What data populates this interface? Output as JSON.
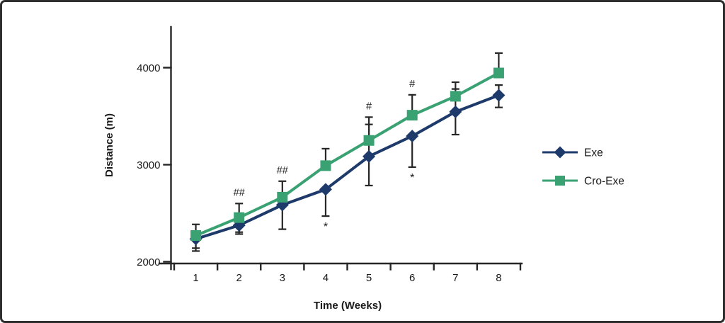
{
  "chart_data": {
    "type": "line",
    "title": "",
    "xlabel": "Time (Weeks)",
    "ylabel": "Distance (m)",
    "x_categories": [
      "1",
      "2",
      "3",
      "4",
      "5",
      "6",
      "7",
      "8"
    ],
    "yticks": [
      2000,
      3000,
      4000
    ],
    "ylim": [
      2000,
      4430
    ],
    "grid": false,
    "legend_position": "right-middle",
    "axis_color": "#262626",
    "text_color": "#1a1a1a",
    "series": [
      {
        "name": "Exe",
        "color": "#1e3a6b",
        "marker": "diamond",
        "values": [
          2235,
          2375,
          2585,
          2745,
          3085,
          3295,
          3545,
          3715
        ],
        "err_up": [
          0,
          0,
          0,
          0,
          330,
          0,
          235,
          105
        ],
        "err_down": [
          95,
          70,
          250,
          275,
          300,
          320,
          235,
          125
        ]
      },
      {
        "name": "Cro-Exe",
        "color": "#3aa173",
        "marker": "square",
        "values": [
          2270,
          2455,
          2665,
          2990,
          3250,
          3510,
          3705,
          3945
        ],
        "err_up": [
          115,
          145,
          165,
          175,
          240,
          210,
          145,
          205
        ],
        "err_down": [
          160,
          170,
          0,
          0,
          0,
          0,
          0,
          0
        ]
      }
    ],
    "annotations": [
      {
        "text": "##",
        "week": 2,
        "position": "above"
      },
      {
        "text": "##",
        "week": 3,
        "position": "above"
      },
      {
        "text": "#",
        "week": 5,
        "position": "above"
      },
      {
        "text": "#",
        "week": 6,
        "position": "above"
      },
      {
        "text": "*",
        "week": 4,
        "position": "below"
      },
      {
        "text": "*",
        "week": 6,
        "position": "below"
      }
    ]
  }
}
